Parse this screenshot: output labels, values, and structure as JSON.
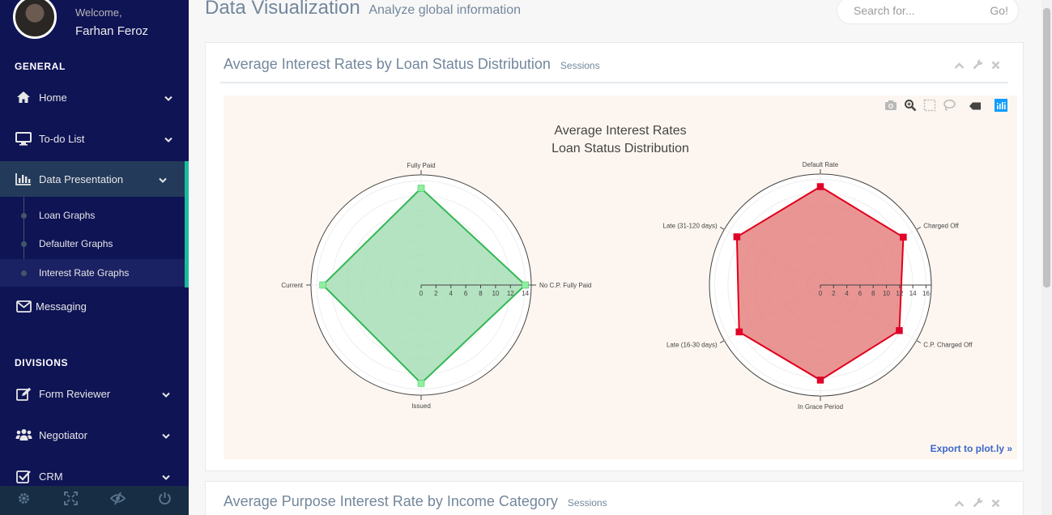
{
  "user": {
    "welcome": "Welcome,",
    "name": "Farhan Feroz"
  },
  "sidebar": {
    "general_title": "GENERAL",
    "divisions_title": "DIVISIONS",
    "items": [
      {
        "label": "Home",
        "icon": "home-icon"
      },
      {
        "label": "To-do List",
        "icon": "desktop-icon"
      },
      {
        "label": "Data Presentation",
        "icon": "bar-chart-icon"
      },
      {
        "label": "Messaging",
        "icon": "envelope-icon"
      },
      {
        "label": "Form Reviewer",
        "icon": "edit-icon"
      },
      {
        "label": "Negotiator",
        "icon": "users-icon"
      },
      {
        "label": "CRM",
        "icon": "check-square-icon"
      }
    ],
    "sub_items": [
      {
        "label": "Loan Graphs"
      },
      {
        "label": "Defaulter Graphs"
      },
      {
        "label": "Interest Rate Graphs"
      }
    ],
    "footer_icons": [
      "settings-icon",
      "fullscreen-icon",
      "eye-slash-icon",
      "power-icon"
    ]
  },
  "header": {
    "title": "Data Visualization",
    "subtitle": "Analyze global information",
    "search_placeholder": "Search for...",
    "search_button": "Go!"
  },
  "panels": [
    {
      "title": "Average Interest Rates by Loan Status Distribution",
      "tag": "Sessions"
    },
    {
      "title": "Average Purpose Interest Rate by Income Category",
      "tag": "Sessions"
    }
  ],
  "plot": {
    "title_line1": "Average Interest Rates",
    "title_line2": "Loan Status Distribution",
    "export_label": "Export to plot.ly »",
    "modebar_icons": [
      "camera-icon",
      "zoom-icon",
      "box-select-icon",
      "lasso-icon",
      "hover-compare-icon",
      "plotly-logo-icon"
    ]
  },
  "chart_data": [
    {
      "type": "radar",
      "categories": [
        "Fully Paid",
        "Current",
        "Issued",
        "No C.P. Fully Paid"
      ],
      "values": [
        13.0,
        13.2,
        13.2,
        14.0
      ],
      "radial_ticks": [
        0,
        2,
        4,
        6,
        8,
        10,
        12,
        14
      ],
      "radial_range": [
        0,
        14.8
      ],
      "fill_color": "#a1dcb1",
      "line_color": "#33b856",
      "marker_color": "#8ef09e"
    },
    {
      "type": "radar",
      "categories": [
        "Default Rate",
        "Late (31-120 days)",
        "Late (16-30 days)",
        "In Grace Period",
        "C.P. Charged Off",
        "Charged Off"
      ],
      "values": [
        14.9,
        14.6,
        14.2,
        14.4,
        13.8,
        14.5
      ],
      "radial_ticks": [
        0,
        2,
        4,
        6,
        8,
        10,
        12,
        14,
        16
      ],
      "radial_range": [
        0,
        16.8
      ],
      "fill_color": "#e47a78",
      "line_color": "#e0001c",
      "marker_color": "#e0002a"
    }
  ]
}
